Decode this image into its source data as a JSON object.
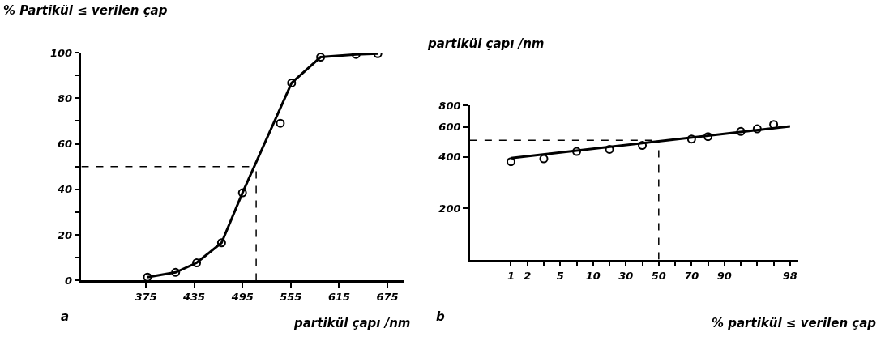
{
  "chart_data": [
    {
      "type": "line",
      "ylabel": "% Partikül ≤ verilen çap",
      "xlabel": "partikül çapı /nm",
      "annotations": [
        "a"
      ],
      "xlim": [
        295,
        695
      ],
      "xticks": [
        375,
        435,
        495,
        555,
        615,
        675
      ],
      "ylim": [
        0,
        100
      ],
      "yticks": [
        0,
        {
          "value": 10,
          "label": null
        },
        20,
        {
          "value": 30,
          "label": null
        },
        40,
        {
          "value": 50,
          "label": null
        },
        60,
        {
          "value": 70,
          "label": null
        },
        80,
        {
          "value": 90,
          "label": null
        },
        100
      ],
      "grid": false,
      "series": [
        {
          "marker": "circle",
          "color": "#000000",
          "x": [
            377,
            412,
            438,
            469,
            495,
            556,
            592,
            636,
            663
          ],
          "values": [
            1.5,
            3.6,
            7.8,
            16.6,
            38.5,
            86.7,
            98,
            99.2,
            99.5
          ]
        },
        {
          "type": "scatter",
          "marker": "circle",
          "color": "#000000",
          "x": [
            542
          ],
          "values": [
            69
          ]
        }
      ],
      "ref_lines": [
        {
          "axis": "y",
          "value": 50,
          "line_style": "dashed",
          "color": "#000000"
        },
        {
          "axis": "x",
          "value": 512,
          "line_style": "dashed",
          "color": "#000000"
        }
      ]
    },
    {
      "type": "scatter",
      "ylabel": "partikül çapı /nm",
      "xlabel": "% partikül ≤ verilen çap",
      "annotations": [
        "b"
      ],
      "log": "y",
      "categories": [
        "1",
        "2",
        null,
        "5",
        null,
        "10",
        null,
        "30",
        null,
        "50",
        null,
        "70",
        null,
        "90",
        null,
        null,
        null,
        "98"
      ],
      "ylim": [
        100,
        800
      ],
      "yticks": [
        200,
        400,
        600,
        800
      ],
      "grid": false,
      "series": [
        {
          "marker": "circle",
          "color": "#000000",
          "values": [
            375,
            null,
            390,
            null,
            430,
            null,
            443,
            null,
            467,
            null,
            null,
            509,
            526,
            null,
            564,
            584,
            620,
            null
          ]
        },
        {
          "type": "line",
          "marker": "none",
          "color": "#000000",
          "values": [
            393,
            null,
            null,
            null,
            null,
            null,
            null,
            null,
            null,
            null,
            null,
            null,
            null,
            null,
            null,
            null,
            null,
            604
          ]
        }
      ],
      "ref_lines": [
        {
          "axis": "y",
          "value": 500,
          "line_style": "dashed",
          "color": "#000000"
        },
        {
          "axis": "x",
          "value": "50",
          "line_style": "dashed",
          "color": "#000000"
        }
      ]
    }
  ]
}
